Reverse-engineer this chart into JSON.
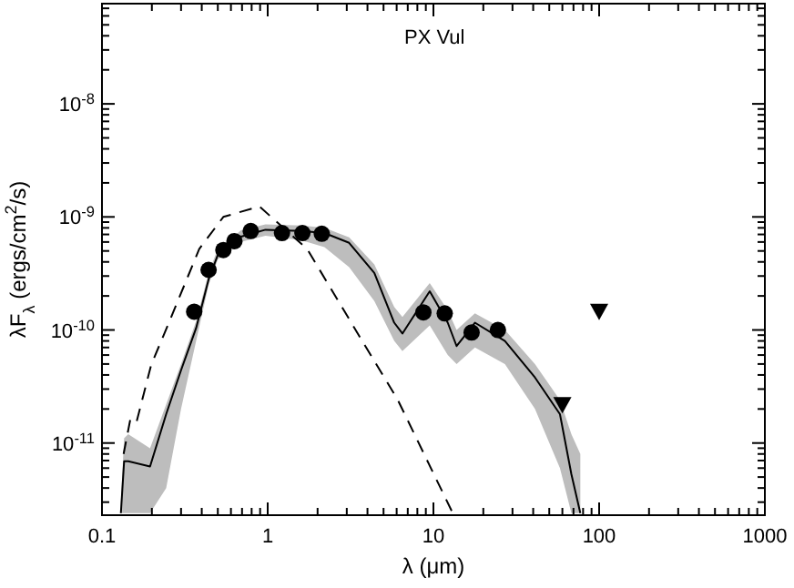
{
  "chart_data": {
    "type": "line",
    "title": "PX Vul",
    "xlabel": "λ (μm)",
    "ylabel": "λF$_{λ}$ (ergs/cm$^{2}$/s)",
    "log": "xy",
    "grid": false,
    "xlim": [
      0.1,
      1000
    ],
    "ylim": [
      2.3e-12,
      7.7e-08
    ],
    "xticks": [
      {
        "value": 0.1,
        "label": "0.1"
      },
      {
        "value": 0.2,
        "label": null
      },
      {
        "value": 0.3,
        "label": null
      },
      {
        "value": 0.4,
        "label": null
      },
      {
        "value": 0.5,
        "label": null
      },
      {
        "value": 0.6,
        "label": null
      },
      {
        "value": 0.7,
        "label": null
      },
      {
        "value": 0.8,
        "label": null
      },
      {
        "value": 0.9,
        "label": null
      },
      1,
      {
        "value": 2,
        "label": null
      },
      {
        "value": 3,
        "label": null
      },
      {
        "value": 4,
        "label": null
      },
      {
        "value": 5,
        "label": null
      },
      {
        "value": 6,
        "label": null
      },
      {
        "value": 7,
        "label": null
      },
      {
        "value": 8,
        "label": null
      },
      {
        "value": 9,
        "label": null
      },
      10,
      {
        "value": 20,
        "label": null
      },
      {
        "value": 30,
        "label": null
      },
      {
        "value": 40,
        "label": null
      },
      {
        "value": 50,
        "label": null
      },
      {
        "value": 60,
        "label": null
      },
      {
        "value": 70,
        "label": null
      },
      {
        "value": 80,
        "label": null
      },
      {
        "value": 90,
        "label": null
      },
      100,
      {
        "value": 200,
        "label": null
      },
      {
        "value": 300,
        "label": null
      },
      {
        "value": 400,
        "label": null
      },
      {
        "value": 500,
        "label": null
      },
      {
        "value": 600,
        "label": null
      },
      {
        "value": 700,
        "label": null
      },
      {
        "value": 800,
        "label": null
      },
      {
        "value": 900,
        "label": null
      },
      1000
    ],
    "yticks": [
      {
        "value": 3e-12,
        "label": null
      },
      {
        "value": 4e-12,
        "label": null
      },
      {
        "value": 5e-12,
        "label": null
      },
      {
        "value": 6e-12,
        "label": null
      },
      {
        "value": 7e-12,
        "label": null
      },
      {
        "value": 8e-12,
        "label": null
      },
      {
        "value": 9e-12,
        "label": null
      },
      {
        "value": 1e-11,
        "label": "10$^{-11}$"
      },
      {
        "value": 2e-11,
        "label": null
      },
      {
        "value": 3e-11,
        "label": null
      },
      {
        "value": 4e-11,
        "label": null
      },
      {
        "value": 5e-11,
        "label": null
      },
      {
        "value": 6e-11,
        "label": null
      },
      {
        "value": 7e-11,
        "label": null
      },
      {
        "value": 8e-11,
        "label": null
      },
      {
        "value": 9e-11,
        "label": null
      },
      {
        "value": 1e-10,
        "label": "10$^{-10}$"
      },
      {
        "value": 2e-10,
        "label": null
      },
      {
        "value": 3e-10,
        "label": null
      },
      {
        "value": 4e-10,
        "label": null
      },
      {
        "value": 5e-10,
        "label": null
      },
      {
        "value": 6e-10,
        "label": null
      },
      {
        "value": 7e-10,
        "label": null
      },
      {
        "value": 8e-10,
        "label": null
      },
      {
        "value": 9e-10,
        "label": null
      },
      {
        "value": 1e-09,
        "label": "10$^{-9}$"
      },
      {
        "value": 2e-09,
        "label": null
      },
      {
        "value": 3e-09,
        "label": null
      },
      {
        "value": 4e-09,
        "label": null
      },
      {
        "value": 5e-09,
        "label": null
      },
      {
        "value": 6e-09,
        "label": null
      },
      {
        "value": 7e-09,
        "label": null
      },
      {
        "value": 8e-09,
        "label": null
      },
      {
        "value": 9e-09,
        "label": null
      },
      {
        "value": 1e-08,
        "label": "10$^{-8}$"
      },
      {
        "value": 2e-08,
        "label": null
      },
      {
        "value": 3e-08,
        "label": null
      },
      {
        "value": 4e-08,
        "label": null
      },
      {
        "value": 5e-08,
        "label": null
      },
      {
        "value": 6e-08,
        "label": null
      },
      {
        "value": 7e-08,
        "label": null
      }
    ],
    "series": [
      {
        "color": "#000000",
        "line_style": "solid",
        "marker": "none",
        "x": [
          0.13,
          0.136,
          0.144,
          0.195,
          0.244,
          0.3,
          0.37,
          0.44,
          0.5,
          0.69,
          0.97,
          1.6,
          2.2,
          3.1,
          4.4,
          5.8,
          6.5,
          9.5,
          12.2,
          13.8,
          17.8,
          27,
          41,
          58,
          68,
          77
        ],
        "values": [
          2.4e-12,
          6.9e-12,
          6.9e-12,
          6.2e-12,
          1.8e-11,
          4.4e-11,
          1.04e-10,
          2.8e-10,
          4.6e-10,
          6.7e-10,
          7.7e-10,
          7.5e-10,
          7.2e-10,
          5.9e-10,
          3.2e-10,
          1.16e-10,
          9.3e-11,
          2.2e-10,
          1.16e-10,
          7.2e-11,
          1.16e-10,
          8e-11,
          3.8e-11,
          1.8e-11,
          5.3e-12,
          2.4e-12
        ],
        "lower": [
          2.4e-12,
          2.4e-12,
          2.4e-12,
          2.4e-12,
          4e-12,
          2e-11,
          8e-11,
          2.5e-10,
          4.2e-10,
          6e-10,
          6.8e-10,
          6.2e-10,
          5.4e-10,
          3.6e-10,
          1.8e-10,
          8e-11,
          6.5e-11,
          1.1e-10,
          6e-11,
          5e-11,
          7e-11,
          5e-11,
          2e-11,
          6e-12,
          2.4e-12,
          2.4e-12
        ],
        "upper": [
          3e-12,
          1.1e-11,
          1.2e-11,
          9e-12,
          2.2e-11,
          5e-11,
          1.2e-10,
          3.2e-10,
          5.2e-10,
          7.6e-10,
          8.6e-10,
          8.4e-10,
          8e-10,
          6.6e-10,
          3.8e-10,
          1.6e-10,
          1.3e-10,
          2.6e-10,
          1.5e-10,
          1e-10,
          1.4e-10,
          1e-10,
          5e-11,
          2.4e-11,
          1.2e-11,
          8e-12
        ]
      },
      {
        "color": "#000000",
        "line_style": "dashed",
        "marker": "none",
        "x": [
          0.135,
          0.148,
          0.161,
          0.198,
          0.254,
          0.386,
          0.54,
          0.89,
          1.73,
          3.7,
          6.1,
          12.9
        ],
        "values": [
          8e-12,
          1.6e-11,
          1.5e-11,
          4.9e-11,
          1.17e-10,
          5.2e-10,
          1e-09,
          1.24e-09,
          5.2e-10,
          8.1e-11,
          2.4e-11,
          2.5e-12
        ]
      },
      {
        "type": "scatter",
        "color": "#000000",
        "marker": "circle",
        "x": [
          0.36,
          0.44,
          0.54,
          0.63,
          0.79,
          1.22,
          1.62,
          2.12,
          8.7,
          11.7,
          17,
          24.5
        ],
        "values": [
          1.45e-10,
          3.4e-10,
          5.1e-10,
          6.1e-10,
          7.5e-10,
          7.2e-10,
          7.2e-10,
          7.1e-10,
          1.43e-10,
          1.4e-10,
          9.5e-11,
          1e-10
        ]
      },
      {
        "type": "scatter",
        "color": "#000000",
        "marker": "triangle",
        "x": [
          60,
          100
        ],
        "values": [
          2.2e-11,
          1.47e-10
        ]
      }
    ]
  }
}
